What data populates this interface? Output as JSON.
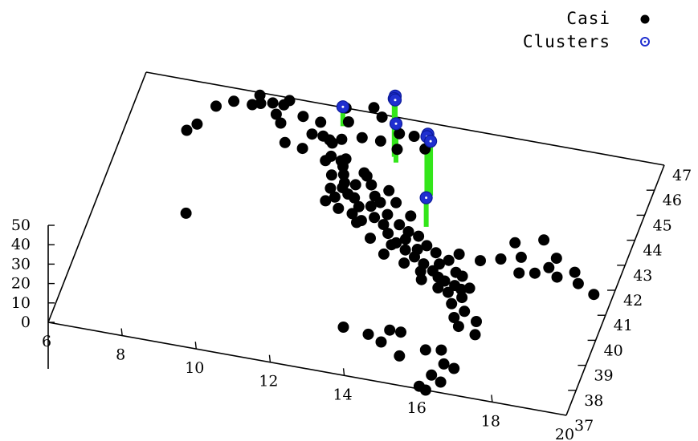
{
  "chart_data": {
    "type": "scatter",
    "projection": "3d",
    "title": "",
    "xlabel": "",
    "ylabel": "",
    "zlabel": "",
    "xlim": [
      6,
      20
    ],
    "ylim": [
      37,
      47
    ],
    "zlim": [
      0,
      50
    ],
    "xticks": [
      "6",
      "8",
      "10",
      "12",
      "14",
      "16",
      "18",
      "20"
    ],
    "yticks": [
      "37",
      "38",
      "39",
      "40",
      "41",
      "42",
      "43",
      "44",
      "45",
      "46",
      "47"
    ],
    "zticks": [
      "0",
      "10",
      "20",
      "30",
      "40",
      "50"
    ],
    "legend_position": "top-right",
    "colors": {
      "casi": "#000000",
      "clusters": "#1f2fd0",
      "stems": "#33e61a",
      "axes": "#000000"
    },
    "series": [
      {
        "name": "Casi",
        "marker": "filled-circle",
        "points": [
          [
            7.6,
            45.1,
            0
          ],
          [
            7.8,
            45.4,
            0
          ],
          [
            8.1,
            46.2,
            0
          ],
          [
            8.5,
            46.5,
            0
          ],
          [
            9.0,
            46.5,
            0
          ],
          [
            9.2,
            46.6,
            0
          ],
          [
            9.1,
            46.9,
            0
          ],
          [
            9.5,
            46.7,
            0
          ],
          [
            9.8,
            46.7,
            0
          ],
          [
            9.9,
            46.9,
            0
          ],
          [
            9.7,
            46.3,
            0
          ],
          [
            9.9,
            46.0,
            0
          ],
          [
            10.4,
            46.4,
            0
          ],
          [
            10.9,
            46.3,
            0
          ],
          [
            10.2,
            45.3,
            0
          ],
          [
            11.1,
            45.8,
            0
          ],
          [
            11.6,
            46.5,
            0
          ],
          [
            12.1,
            46.0,
            0
          ],
          [
            11.4,
            47.0,
            0
          ],
          [
            12.1,
            47.2,
            0
          ],
          [
            12.4,
            46.9,
            0
          ],
          [
            12.6,
            46.0,
            0
          ],
          [
            13.0,
            46.4,
            0
          ],
          [
            13.4,
            46.4,
            0
          ],
          [
            13.8,
            46.0,
            0
          ],
          [
            13.1,
            45.8,
            0
          ],
          [
            11.3,
            45.7,
            0
          ],
          [
            11.6,
            45.8,
            0
          ],
          [
            10.8,
            45.8,
            0
          ],
          [
            11.4,
            45.6,
            0
          ],
          [
            10.7,
            45.2,
            0
          ],
          [
            11.4,
            44.9,
            0
          ],
          [
            11.5,
            45.1,
            0
          ],
          [
            11.8,
            45.0,
            0
          ],
          [
            12.0,
            44.5,
            0
          ],
          [
            12.1,
            44.0,
            0
          ],
          [
            12.3,
            43.8,
            0
          ],
          [
            12.5,
            43.7,
            0
          ],
          [
            12.7,
            43.4,
            0
          ],
          [
            13.0,
            43.5,
            0
          ],
          [
            13.2,
            43.1,
            0
          ],
          [
            13.5,
            42.9,
            0
          ],
          [
            13.7,
            42.6,
            0
          ],
          [
            14.0,
            42.3,
            0
          ],
          [
            14.3,
            42.1,
            0
          ],
          [
            14.6,
            41.9,
            0
          ],
          [
            14.9,
            41.7,
            0
          ],
          [
            15.2,
            41.5,
            0
          ],
          [
            15.4,
            41.3,
            0
          ],
          [
            15.6,
            41.2,
            0
          ],
          [
            15.9,
            41.1,
            0
          ],
          [
            15.8,
            40.8,
            0
          ],
          [
            16.3,
            41.1,
            0
          ],
          [
            15.0,
            41.1,
            0
          ],
          [
            15.5,
            40.9,
            0
          ],
          [
            14.4,
            41.6,
            0
          ],
          [
            13.8,
            41.8,
            0
          ],
          [
            13.3,
            42.3,
            0
          ],
          [
            12.8,
            42.8,
            0
          ],
          [
            12.2,
            43.2,
            0
          ],
          [
            12.0,
            43.6,
            0
          ],
          [
            11.8,
            43.9,
            0
          ],
          [
            11.7,
            44.4,
            0
          ],
          [
            11.9,
            44.8,
            0
          ],
          [
            12.6,
            44.6,
            0
          ],
          [
            12.8,
            44.3,
            0
          ],
          [
            13.3,
            44.2,
            0
          ],
          [
            13.6,
            43.8,
            0
          ],
          [
            14.1,
            43.4,
            0
          ],
          [
            13.9,
            43.0,
            0
          ],
          [
            14.5,
            42.7,
            0
          ],
          [
            14.8,
            42.4,
            0
          ],
          [
            15.1,
            42.2,
            0
          ],
          [
            15.5,
            42.0,
            0
          ],
          [
            15.8,
            41.6,
            0
          ],
          [
            16.0,
            41.5,
            0
          ],
          [
            14.6,
            42.2,
            0
          ],
          [
            12.4,
            44.2,
            0
          ],
          [
            12.5,
            44.7,
            0
          ],
          [
            11.9,
            45.1,
            0
          ],
          [
            13.5,
            43.3,
            0
          ],
          [
            14.2,
            42.8,
            0
          ],
          [
            13.0,
            43.9,
            0
          ],
          [
            12.1,
            44.2,
            0
          ],
          [
            11.8,
            43.4,
            0
          ],
          [
            12.6,
            43.1,
            0
          ],
          [
            13.9,
            42.2,
            0
          ],
          [
            14.9,
            41.4,
            0
          ],
          [
            15.3,
            41.8,
            0
          ],
          [
            14.2,
            42.5,
            0
          ],
          [
            13.2,
            43.7,
            0
          ],
          [
            12.9,
            42.9,
            0
          ],
          [
            16.1,
            41.0,
            0
          ],
          [
            16.3,
            42.2,
            0
          ],
          [
            16.8,
            42.4,
            0
          ],
          [
            17.0,
            43.1,
            0
          ],
          [
            17.3,
            42.6,
            0
          ],
          [
            17.7,
            43.4,
            0
          ],
          [
            18.2,
            42.8,
            0
          ],
          [
            18.1,
            42.4,
            0
          ],
          [
            18.4,
            42.1,
            0
          ],
          [
            18.8,
            42.4,
            0
          ],
          [
            19.0,
            42.0,
            0
          ],
          [
            19.5,
            41.7,
            0
          ],
          [
            17.4,
            42.0,
            0
          ],
          [
            17.8,
            42.1,
            0
          ],
          [
            15.7,
            42.3,
            0
          ],
          [
            16.2,
            40.7,
            0
          ],
          [
            16.0,
            40.4,
            0
          ],
          [
            16.2,
            39.9,
            0
          ],
          [
            16.8,
            39.9,
            0
          ],
          [
            16.4,
            39.6,
            0
          ],
          [
            16.9,
            39.4,
            0
          ],
          [
            16.4,
            40.2,
            0
          ],
          [
            13.5,
            38.8,
            0
          ],
          [
            14.2,
            38.7,
            0
          ],
          [
            14.7,
            39.0,
            0
          ],
          [
            15.0,
            39.0,
            0
          ],
          [
            14.6,
            38.5,
            0
          ],
          [
            15.8,
            38.5,
            0
          ],
          [
            16.2,
            38.6,
            0
          ],
          [
            15.2,
            38.1,
            0
          ],
          [
            16.4,
            38.1,
            0
          ],
          [
            16.7,
            38.0,
            0
          ],
          [
            16.2,
            37.6,
            0
          ],
          [
            16.5,
            37.4,
            0
          ],
          [
            16.0,
            37.1,
            0
          ],
          [
            16.2,
            37.0,
            0
          ],
          [
            8.4,
            42.0,
            0
          ]
        ]
      },
      {
        "name": "Clusters",
        "marker": "open-circle",
        "points": [
          [
            11.5,
            46.3,
            10
          ],
          [
            13.1,
            45.6,
            30
          ],
          [
            13.1,
            45.5,
            30
          ],
          [
            13.1,
            45.6,
            28
          ],
          [
            13.2,
            45.3,
            20
          ],
          [
            14.3,
            44.4,
            30
          ],
          [
            14.3,
            44.3,
            30
          ],
          [
            14.4,
            44.3,
            28
          ],
          [
            14.6,
            43.1,
            15
          ]
        ]
      }
    ]
  }
}
